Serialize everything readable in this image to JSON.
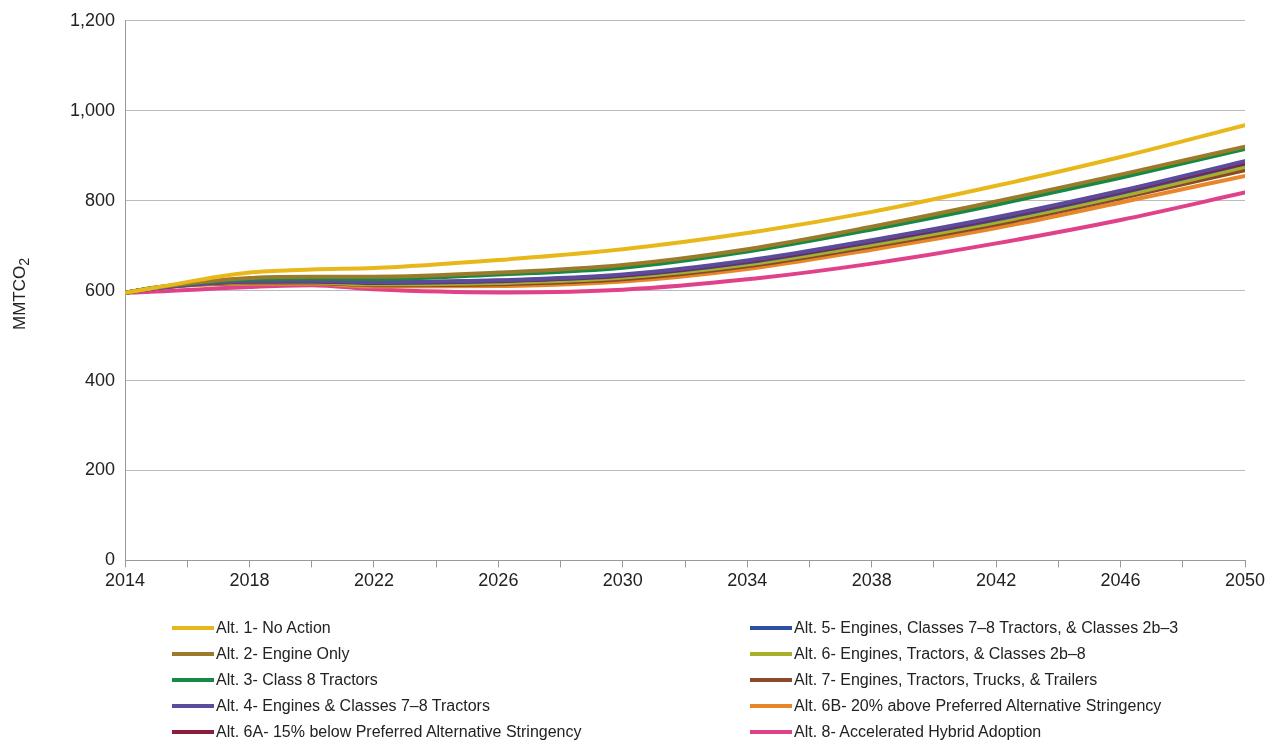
{
  "chart_data": {
    "type": "line",
    "ylabel": "MMTCO$_{2}$",
    "x": [
      2014,
      2015,
      2018,
      2020,
      2022,
      2026,
      2030,
      2034,
      2038,
      2042,
      2046,
      2050
    ],
    "xlim": [
      2014,
      2050
    ],
    "xticks": [
      2014,
      {
        "value": 2016,
        "label": null
      },
      2018,
      {
        "value": 2020,
        "label": null
      },
      2022,
      {
        "value": 2024,
        "label": null
      },
      2026,
      {
        "value": 2028,
        "label": null
      },
      2030,
      {
        "value": 2032,
        "label": null
      },
      2034,
      {
        "value": 2036,
        "label": null
      },
      2038,
      {
        "value": 2040,
        "label": null
      },
      2042,
      {
        "value": 2044,
        "label": null
      },
      2046,
      {
        "value": 2048,
        "label": null
      },
      2050
    ],
    "ylim": [
      0,
      1200
    ],
    "yticks": [
      0,
      200,
      400,
      600,
      800,
      {
        "value": 1000,
        "label": "1,000"
      },
      {
        "value": 1200,
        "label": "1,200"
      }
    ],
    "grid": "y",
    "legend": "bottom",
    "marker": "none",
    "line_style": "solid",
    "series": [
      {
        "name": "Alt. 1- No Action",
        "color": "#e8b81a",
        "values": [
          595,
          607,
          640,
          647,
          650,
          668,
          692,
          728,
          775,
          833,
          897,
          968
        ]
      },
      {
        "name": "Alt. 2- Engine Only",
        "color": "#9b7a2a",
        "values": [
          595,
          607,
          628,
          631,
          631,
          640,
          657,
          692,
          742,
          798,
          858,
          920
        ]
      },
      {
        "name": "Alt. 3- Class 8 Tractors",
        "color": "#168a45",
        "values": [
          595,
          607,
          625,
          627,
          626,
          636,
          651,
          687,
          736,
          791,
          851,
          915
        ]
      },
      {
        "name": "Alt. 4- Engines & Classes 7–8 Tractors",
        "color": "#5a4b9c",
        "values": [
          595,
          606,
          621,
          622,
          619,
          623,
          636,
          667,
          712,
          763,
          822,
          888
        ]
      },
      {
        "name": "Alt. 6A- 15% below Preferred Alternative Stringency",
        "color": "#8b1d3c",
        "values": [
          595,
          606,
          620,
          621,
          618,
          622,
          634,
          665,
          710,
          761,
          820,
          884
        ]
      },
      {
        "name": "Alt. 5- Engines, Classes 7–8 Tractors, & Classes 2b–3",
        "color": "#2e4fa3",
        "values": [
          595,
          606,
          620,
          620,
          617,
          621,
          633,
          663,
          708,
          758,
          817,
          882
        ]
      },
      {
        "name": "Alt. 6- Engines, Tractors, & Classes 2b–8",
        "color": "#a8b02a",
        "values": [
          595,
          606,
          618,
          618,
          614,
          617,
          629,
          658,
          702,
          752,
          810,
          875
        ]
      },
      {
        "name": "Alt. 7- Engines, Tractors, Trucks, & Trailers",
        "color": "#8a4a2a",
        "values": [
          595,
          606,
          617,
          617,
          612,
          614,
          625,
          654,
          698,
          747,
          805,
          868
        ]
      },
      {
        "name": "Alt. 6B- 20% above Preferred Alternative Stringency",
        "color": "#e8862a",
        "values": [
          595,
          606,
          615,
          615,
          609,
          610,
          620,
          648,
          691,
          739,
          796,
          855
        ]
      },
      {
        "name": "Alt. 8- Accelerated Hybrid Adoption",
        "color": "#e0418a",
        "values": [
          595,
          598,
          608,
          612,
          603,
          596,
          602,
          625,
          660,
          705,
          757,
          818
        ]
      }
    ]
  }
}
